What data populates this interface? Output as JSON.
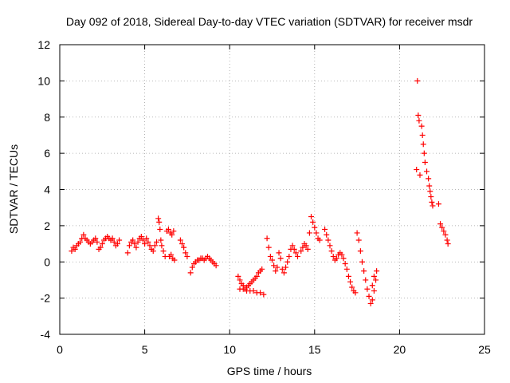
{
  "chart_data": {
    "type": "scatter",
    "title": "Day 092 of 2018, Sidereal Day-to-day VTEC variation (SDTVAR) for receiver msdr",
    "xlabel": "GPS time / hours",
    "ylabel": "SDTVAR / TECUs",
    "xlim": [
      0,
      25
    ],
    "ylim": [
      -4,
      12
    ],
    "xticks": [
      0,
      5,
      10,
      15,
      20,
      25
    ],
    "yticks": [
      -4,
      -2,
      0,
      2,
      4,
      6,
      8,
      10,
      12
    ],
    "grid": true,
    "marker": "+",
    "marker_color": "#ff0000",
    "grid_color": "#a0a0a0",
    "series": [
      {
        "name": "SDTVAR",
        "points": [
          [
            0.7,
            0.6
          ],
          [
            0.8,
            0.8
          ],
          [
            0.9,
            0.7
          ],
          [
            1.0,
            0.9
          ],
          [
            1.1,
            1.0
          ],
          [
            1.2,
            1.1
          ],
          [
            1.3,
            1.3
          ],
          [
            1.4,
            1.5
          ],
          [
            1.5,
            1.3
          ],
          [
            1.6,
            1.2
          ],
          [
            1.7,
            1.1
          ],
          [
            1.8,
            1.0
          ],
          [
            1.9,
            1.1
          ],
          [
            2.0,
            1.2
          ],
          [
            2.1,
            1.3
          ],
          [
            2.2,
            1.1
          ],
          [
            2.3,
            0.7
          ],
          [
            2.4,
            0.8
          ],
          [
            2.5,
            1.0
          ],
          [
            2.6,
            1.2
          ],
          [
            2.7,
            1.3
          ],
          [
            2.8,
            1.4
          ],
          [
            2.9,
            1.3
          ],
          [
            3.0,
            1.2
          ],
          [
            3.1,
            1.3
          ],
          [
            3.2,
            1.1
          ],
          [
            3.3,
            0.9
          ],
          [
            3.4,
            1.0
          ],
          [
            3.5,
            1.2
          ],
          [
            4.0,
            0.5
          ],
          [
            4.1,
            0.9
          ],
          [
            4.2,
            1.1
          ],
          [
            4.3,
            1.2
          ],
          [
            4.4,
            1.0
          ],
          [
            4.5,
            0.8
          ],
          [
            4.6,
            1.1
          ],
          [
            4.7,
            1.3
          ],
          [
            4.8,
            1.4
          ],
          [
            4.9,
            1.2
          ],
          [
            5.0,
            1.0
          ],
          [
            5.1,
            1.3
          ],
          [
            5.2,
            1.1
          ],
          [
            5.3,
            0.9
          ],
          [
            5.4,
            0.7
          ],
          [
            5.5,
            0.6
          ],
          [
            5.6,
            0.9
          ],
          [
            5.7,
            1.1
          ],
          [
            5.8,
            2.4
          ],
          [
            5.85,
            2.2
          ],
          [
            5.9,
            1.8
          ],
          [
            5.95,
            1.2
          ],
          [
            6.0,
            0.9
          ],
          [
            6.1,
            0.6
          ],
          [
            6.2,
            0.3
          ],
          [
            6.3,
            1.7
          ],
          [
            6.4,
            1.8
          ],
          [
            6.5,
            1.6
          ],
          [
            6.6,
            1.5
          ],
          [
            6.7,
            1.7
          ],
          [
            6.45,
            0.3
          ],
          [
            6.55,
            0.4
          ],
          [
            6.65,
            0.2
          ],
          [
            6.75,
            0.1
          ],
          [
            7.1,
            1.2
          ],
          [
            7.2,
            1.0
          ],
          [
            7.3,
            0.8
          ],
          [
            7.4,
            0.5
          ],
          [
            7.5,
            0.3
          ],
          [
            7.7,
            -0.6
          ],
          [
            7.8,
            -0.3
          ],
          [
            7.9,
            -0.1
          ],
          [
            8.0,
            0.0
          ],
          [
            8.1,
            0.1
          ],
          [
            8.2,
            0.1
          ],
          [
            8.3,
            0.2
          ],
          [
            8.4,
            0.2
          ],
          [
            8.5,
            0.1
          ],
          [
            8.6,
            0.2
          ],
          [
            8.7,
            0.3
          ],
          [
            8.8,
            0.2
          ],
          [
            8.9,
            0.1
          ],
          [
            9.0,
            0.0
          ],
          [
            9.1,
            -0.1
          ],
          [
            9.2,
            -0.2
          ],
          [
            10.5,
            -0.8
          ],
          [
            10.6,
            -1.0
          ],
          [
            10.7,
            -1.2
          ],
          [
            10.8,
            -1.3
          ],
          [
            10.9,
            -1.5
          ],
          [
            11.0,
            -1.4
          ],
          [
            11.1,
            -1.3
          ],
          [
            11.2,
            -1.2
          ],
          [
            11.3,
            -1.1
          ],
          [
            11.4,
            -1.0
          ],
          [
            11.5,
            -0.9
          ],
          [
            11.6,
            -0.8
          ],
          [
            11.7,
            -0.6
          ],
          [
            11.8,
            -0.5
          ],
          [
            11.9,
            -0.4
          ],
          [
            10.6,
            -1.5
          ],
          [
            10.8,
            -1.5
          ],
          [
            11.0,
            -1.6
          ],
          [
            11.2,
            -1.6
          ],
          [
            11.4,
            -1.6
          ],
          [
            11.6,
            -1.7
          ],
          [
            11.8,
            -1.7
          ],
          [
            12.0,
            -1.8
          ],
          [
            12.2,
            1.3
          ],
          [
            12.3,
            0.8
          ],
          [
            12.4,
            0.3
          ],
          [
            12.5,
            0.1
          ],
          [
            12.6,
            -0.2
          ],
          [
            12.7,
            -0.5
          ],
          [
            12.8,
            -0.3
          ],
          [
            12.9,
            0.5
          ],
          [
            13.0,
            0.2
          ],
          [
            13.1,
            -0.4
          ],
          [
            13.2,
            -0.6
          ],
          [
            13.3,
            -0.3
          ],
          [
            13.4,
            0.0
          ],
          [
            13.5,
            0.3
          ],
          [
            13.6,
            0.7
          ],
          [
            13.7,
            0.9
          ],
          [
            13.8,
            0.7
          ],
          [
            13.9,
            0.5
          ],
          [
            14.0,
            0.3
          ],
          [
            14.2,
            0.6
          ],
          [
            14.3,
            0.8
          ],
          [
            14.4,
            1.0
          ],
          [
            14.5,
            0.9
          ],
          [
            14.6,
            0.7
          ],
          [
            14.7,
            1.6
          ],
          [
            14.8,
            2.5
          ],
          [
            14.9,
            2.2
          ],
          [
            15.0,
            1.9
          ],
          [
            15.1,
            1.6
          ],
          [
            15.2,
            1.3
          ],
          [
            15.3,
            1.2
          ],
          [
            15.6,
            1.8
          ],
          [
            15.7,
            1.5
          ],
          [
            15.8,
            1.2
          ],
          [
            15.9,
            0.9
          ],
          [
            16.0,
            0.6
          ],
          [
            16.1,
            0.3
          ],
          [
            16.2,
            0.1
          ],
          [
            16.3,
            0.2
          ],
          [
            16.4,
            0.4
          ],
          [
            16.5,
            0.5
          ],
          [
            16.6,
            0.4
          ],
          [
            16.7,
            0.2
          ],
          [
            16.8,
            -0.1
          ],
          [
            16.9,
            -0.4
          ],
          [
            17.0,
            -0.8
          ],
          [
            17.1,
            -1.1
          ],
          [
            17.2,
            -1.4
          ],
          [
            17.3,
            -1.6
          ],
          [
            17.4,
            -1.7
          ],
          [
            17.5,
            1.6
          ],
          [
            17.6,
            1.2
          ],
          [
            17.7,
            0.6
          ],
          [
            17.8,
            0.0
          ],
          [
            17.9,
            -0.5
          ],
          [
            18.0,
            -1.0
          ],
          [
            18.1,
            -1.5
          ],
          [
            18.2,
            -1.9
          ],
          [
            18.3,
            -2.3
          ],
          [
            18.4,
            -2.1
          ],
          [
            18.5,
            -1.6
          ],
          [
            18.6,
            -1.0
          ],
          [
            18.65,
            -0.5
          ],
          [
            18.4,
            -1.3
          ],
          [
            18.5,
            -0.8
          ],
          [
            21.05,
            10.0
          ],
          [
            21.1,
            8.1
          ],
          [
            21.15,
            7.8
          ],
          [
            21.0,
            5.1
          ],
          [
            21.2,
            4.8
          ],
          [
            21.3,
            7.5
          ],
          [
            21.35,
            7.0
          ],
          [
            21.4,
            6.5
          ],
          [
            21.45,
            6.0
          ],
          [
            21.5,
            5.5
          ],
          [
            21.6,
            5.0
          ],
          [
            21.7,
            4.6
          ],
          [
            21.75,
            4.2
          ],
          [
            21.8,
            3.9
          ],
          [
            21.85,
            3.6
          ],
          [
            21.9,
            3.3
          ],
          [
            21.95,
            3.1
          ],
          [
            22.3,
            3.2
          ],
          [
            22.4,
            2.1
          ],
          [
            22.5,
            1.9
          ],
          [
            22.6,
            1.7
          ],
          [
            22.7,
            1.5
          ],
          [
            22.8,
            1.2
          ],
          [
            22.85,
            1.0
          ]
        ]
      }
    ]
  }
}
